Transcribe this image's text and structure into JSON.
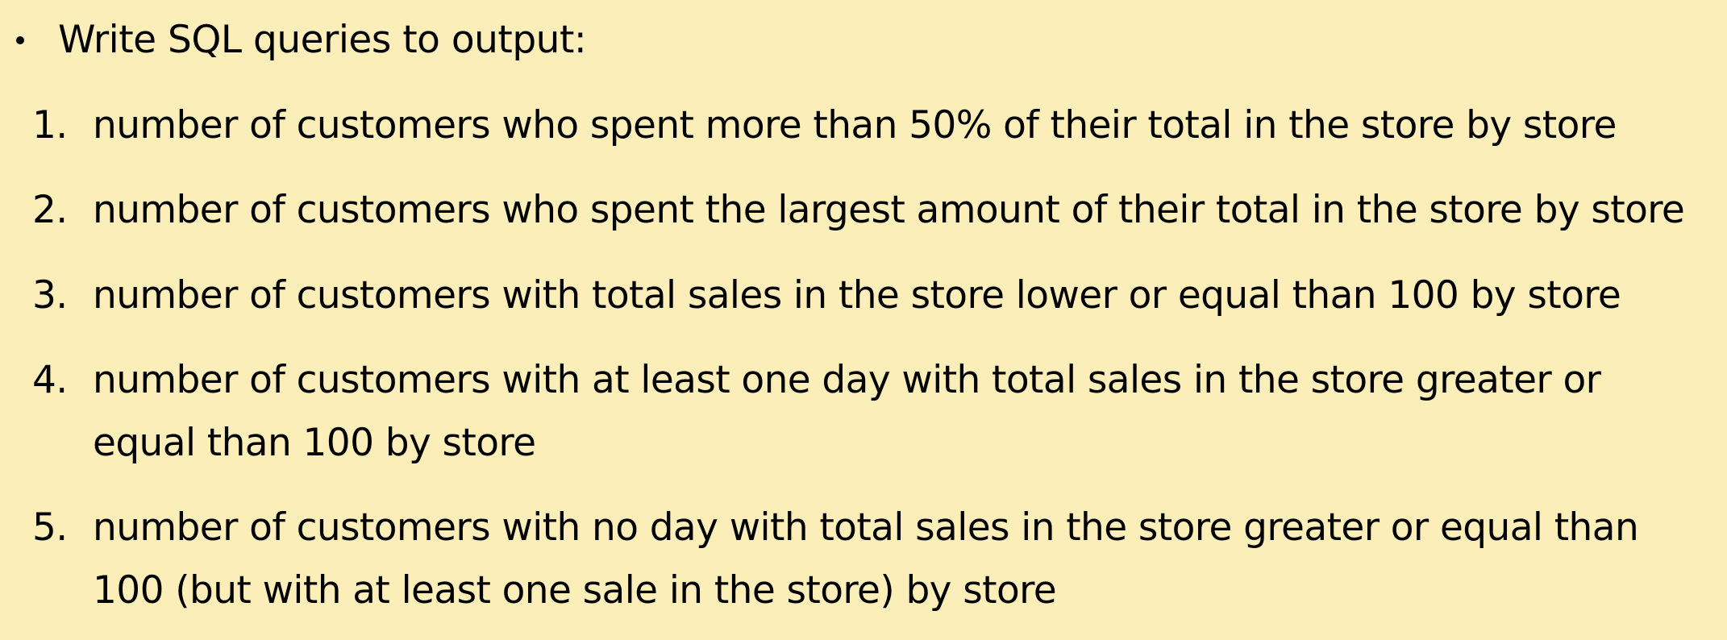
{
  "intro": "Write SQL queries to output:",
  "items": [
    {
      "number": "1.",
      "lines": [
        "number of customers who spent more than 50% of their total in the store by store"
      ]
    },
    {
      "number": "2.",
      "lines": [
        "number of customers who spent the largest amount of their total in the store by store"
      ]
    },
    {
      "number": "3.",
      "lines": [
        "number of customers with total sales in the store lower or equal than 100 by store"
      ]
    },
    {
      "number": "4.",
      "lines": [
        "number of customers with at least one day with total sales in the store greater or",
        "equal than 100 by store"
      ]
    },
    {
      "number": "5.",
      "lines": [
        "number of customers with no day with total sales in the store greater or equal than",
        "100 (but with at least one sale in the store) by store"
      ]
    }
  ]
}
